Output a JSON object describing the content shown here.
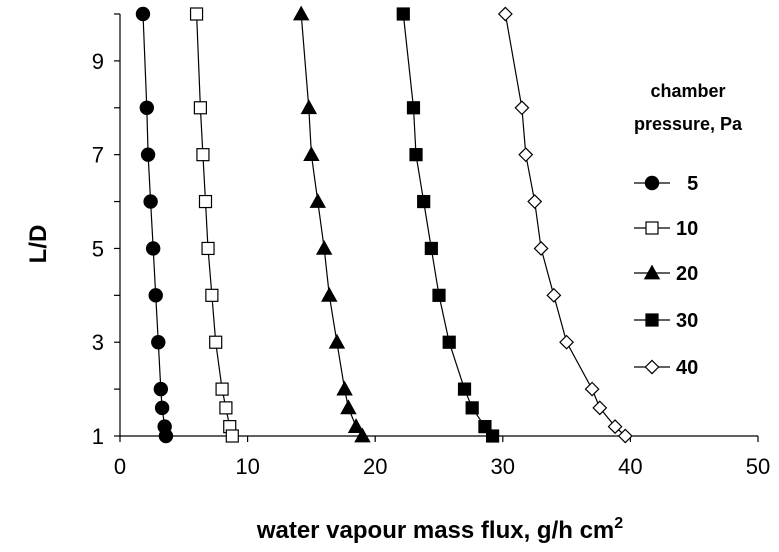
{
  "chart_data": {
    "type": "scatter",
    "xlabel": "water vapour mass flux, g/h cm",
    "xlabel_superscript": "2",
    "ylabel": "L/D",
    "xlim": [
      0,
      50
    ],
    "ylim": [
      1,
      10
    ],
    "xticks": [
      "0",
      "10",
      "20",
      "30",
      "40",
      "50"
    ],
    "yticks": [
      "1",
      "3",
      "5",
      "7",
      "9"
    ],
    "grid": false,
    "legend_position": "right",
    "legend_title_lines": [
      "chamber",
      "pressure, Pa"
    ],
    "series": [
      {
        "name": "5",
        "marker": "circle-filled",
        "points": [
          [
            1.8,
            10
          ],
          [
            2.1,
            8
          ],
          [
            2.2,
            7
          ],
          [
            2.4,
            6
          ],
          [
            2.6,
            5
          ],
          [
            2.8,
            4
          ],
          [
            3.0,
            3
          ],
          [
            3.2,
            2
          ],
          [
            3.3,
            1.6
          ],
          [
            3.5,
            1.2
          ],
          [
            3.6,
            1
          ]
        ]
      },
      {
        "name": "10",
        "marker": "square-open",
        "points": [
          [
            6.0,
            10
          ],
          [
            6.3,
            8
          ],
          [
            6.5,
            7
          ],
          [
            6.7,
            6
          ],
          [
            6.9,
            5
          ],
          [
            7.2,
            4
          ],
          [
            7.5,
            3
          ],
          [
            8.0,
            2
          ],
          [
            8.3,
            1.6
          ],
          [
            8.6,
            1.2
          ],
          [
            8.8,
            1
          ]
        ]
      },
      {
        "name": "20",
        "marker": "triangle-filled",
        "points": [
          [
            14.2,
            10
          ],
          [
            14.8,
            8
          ],
          [
            15.0,
            7
          ],
          [
            15.5,
            6
          ],
          [
            16.0,
            5
          ],
          [
            16.4,
            4
          ],
          [
            17.0,
            3
          ],
          [
            17.6,
            2
          ],
          [
            17.9,
            1.6
          ],
          [
            18.5,
            1.2
          ],
          [
            19.0,
            1
          ]
        ]
      },
      {
        "name": "30",
        "marker": "square-filled",
        "points": [
          [
            22.2,
            10
          ],
          [
            23.0,
            8
          ],
          [
            23.2,
            7
          ],
          [
            23.8,
            6
          ],
          [
            24.4,
            5
          ],
          [
            25.0,
            4
          ],
          [
            25.8,
            3
          ],
          [
            27.0,
            2
          ],
          [
            27.6,
            1.6
          ],
          [
            28.6,
            1.2
          ],
          [
            29.2,
            1
          ]
        ]
      },
      {
        "name": "40",
        "marker": "diamond-open",
        "points": [
          [
            30.2,
            10
          ],
          [
            31.5,
            8
          ],
          [
            31.8,
            7
          ],
          [
            32.5,
            6
          ],
          [
            33.0,
            5
          ],
          [
            34.0,
            4
          ],
          [
            35.0,
            3
          ],
          [
            37.0,
            2
          ],
          [
            37.6,
            1.6
          ],
          [
            38.8,
            1.2
          ],
          [
            39.6,
            1
          ]
        ]
      }
    ]
  }
}
